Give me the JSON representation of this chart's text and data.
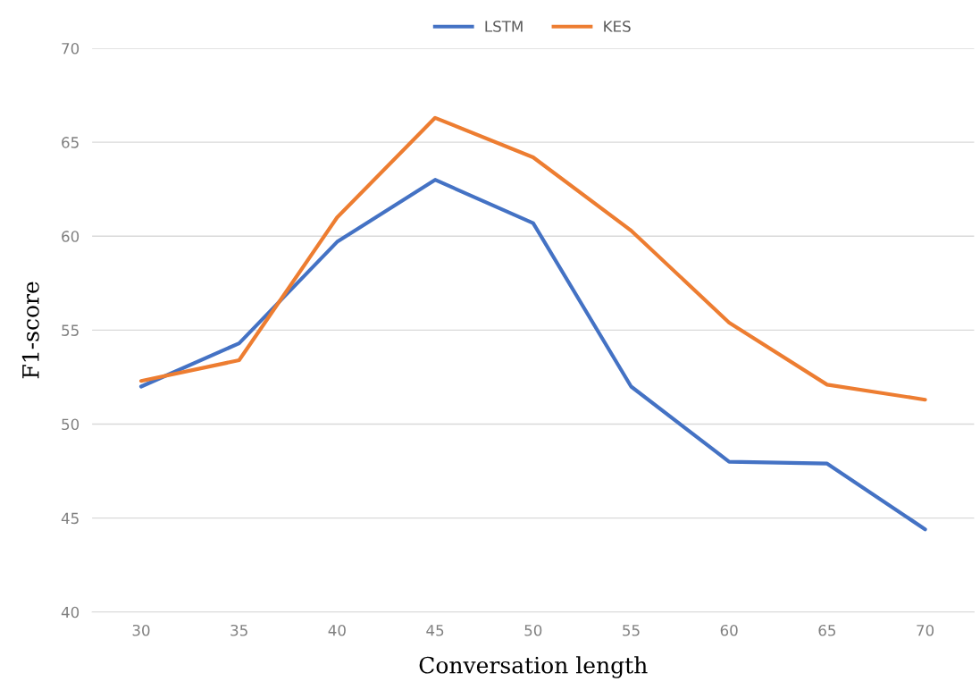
{
  "chart_data": {
    "type": "line",
    "xlabel": "Conversation length",
    "ylabel": "F1-score",
    "categories": [
      "30",
      "35",
      "40",
      "45",
      "50",
      "55",
      "60",
      "65",
      "70"
    ],
    "series": [
      {
        "name": "LSTM",
        "color": "#4472c4",
        "values": [
          52.0,
          54.3,
          59.7,
          63.0,
          60.7,
          52.0,
          48.0,
          47.9,
          44.4
        ]
      },
      {
        "name": "KES",
        "color": "#ed7d31",
        "values": [
          52.3,
          53.4,
          61.0,
          66.3,
          64.2,
          60.3,
          55.4,
          52.1,
          51.3
        ]
      }
    ],
    "ylim": [
      40,
      70
    ],
    "yticks": [
      40,
      45,
      50,
      55,
      60,
      65,
      70
    ],
    "grid": "y",
    "legend": "top",
    "marker": "none",
    "line_style": "solid"
  }
}
